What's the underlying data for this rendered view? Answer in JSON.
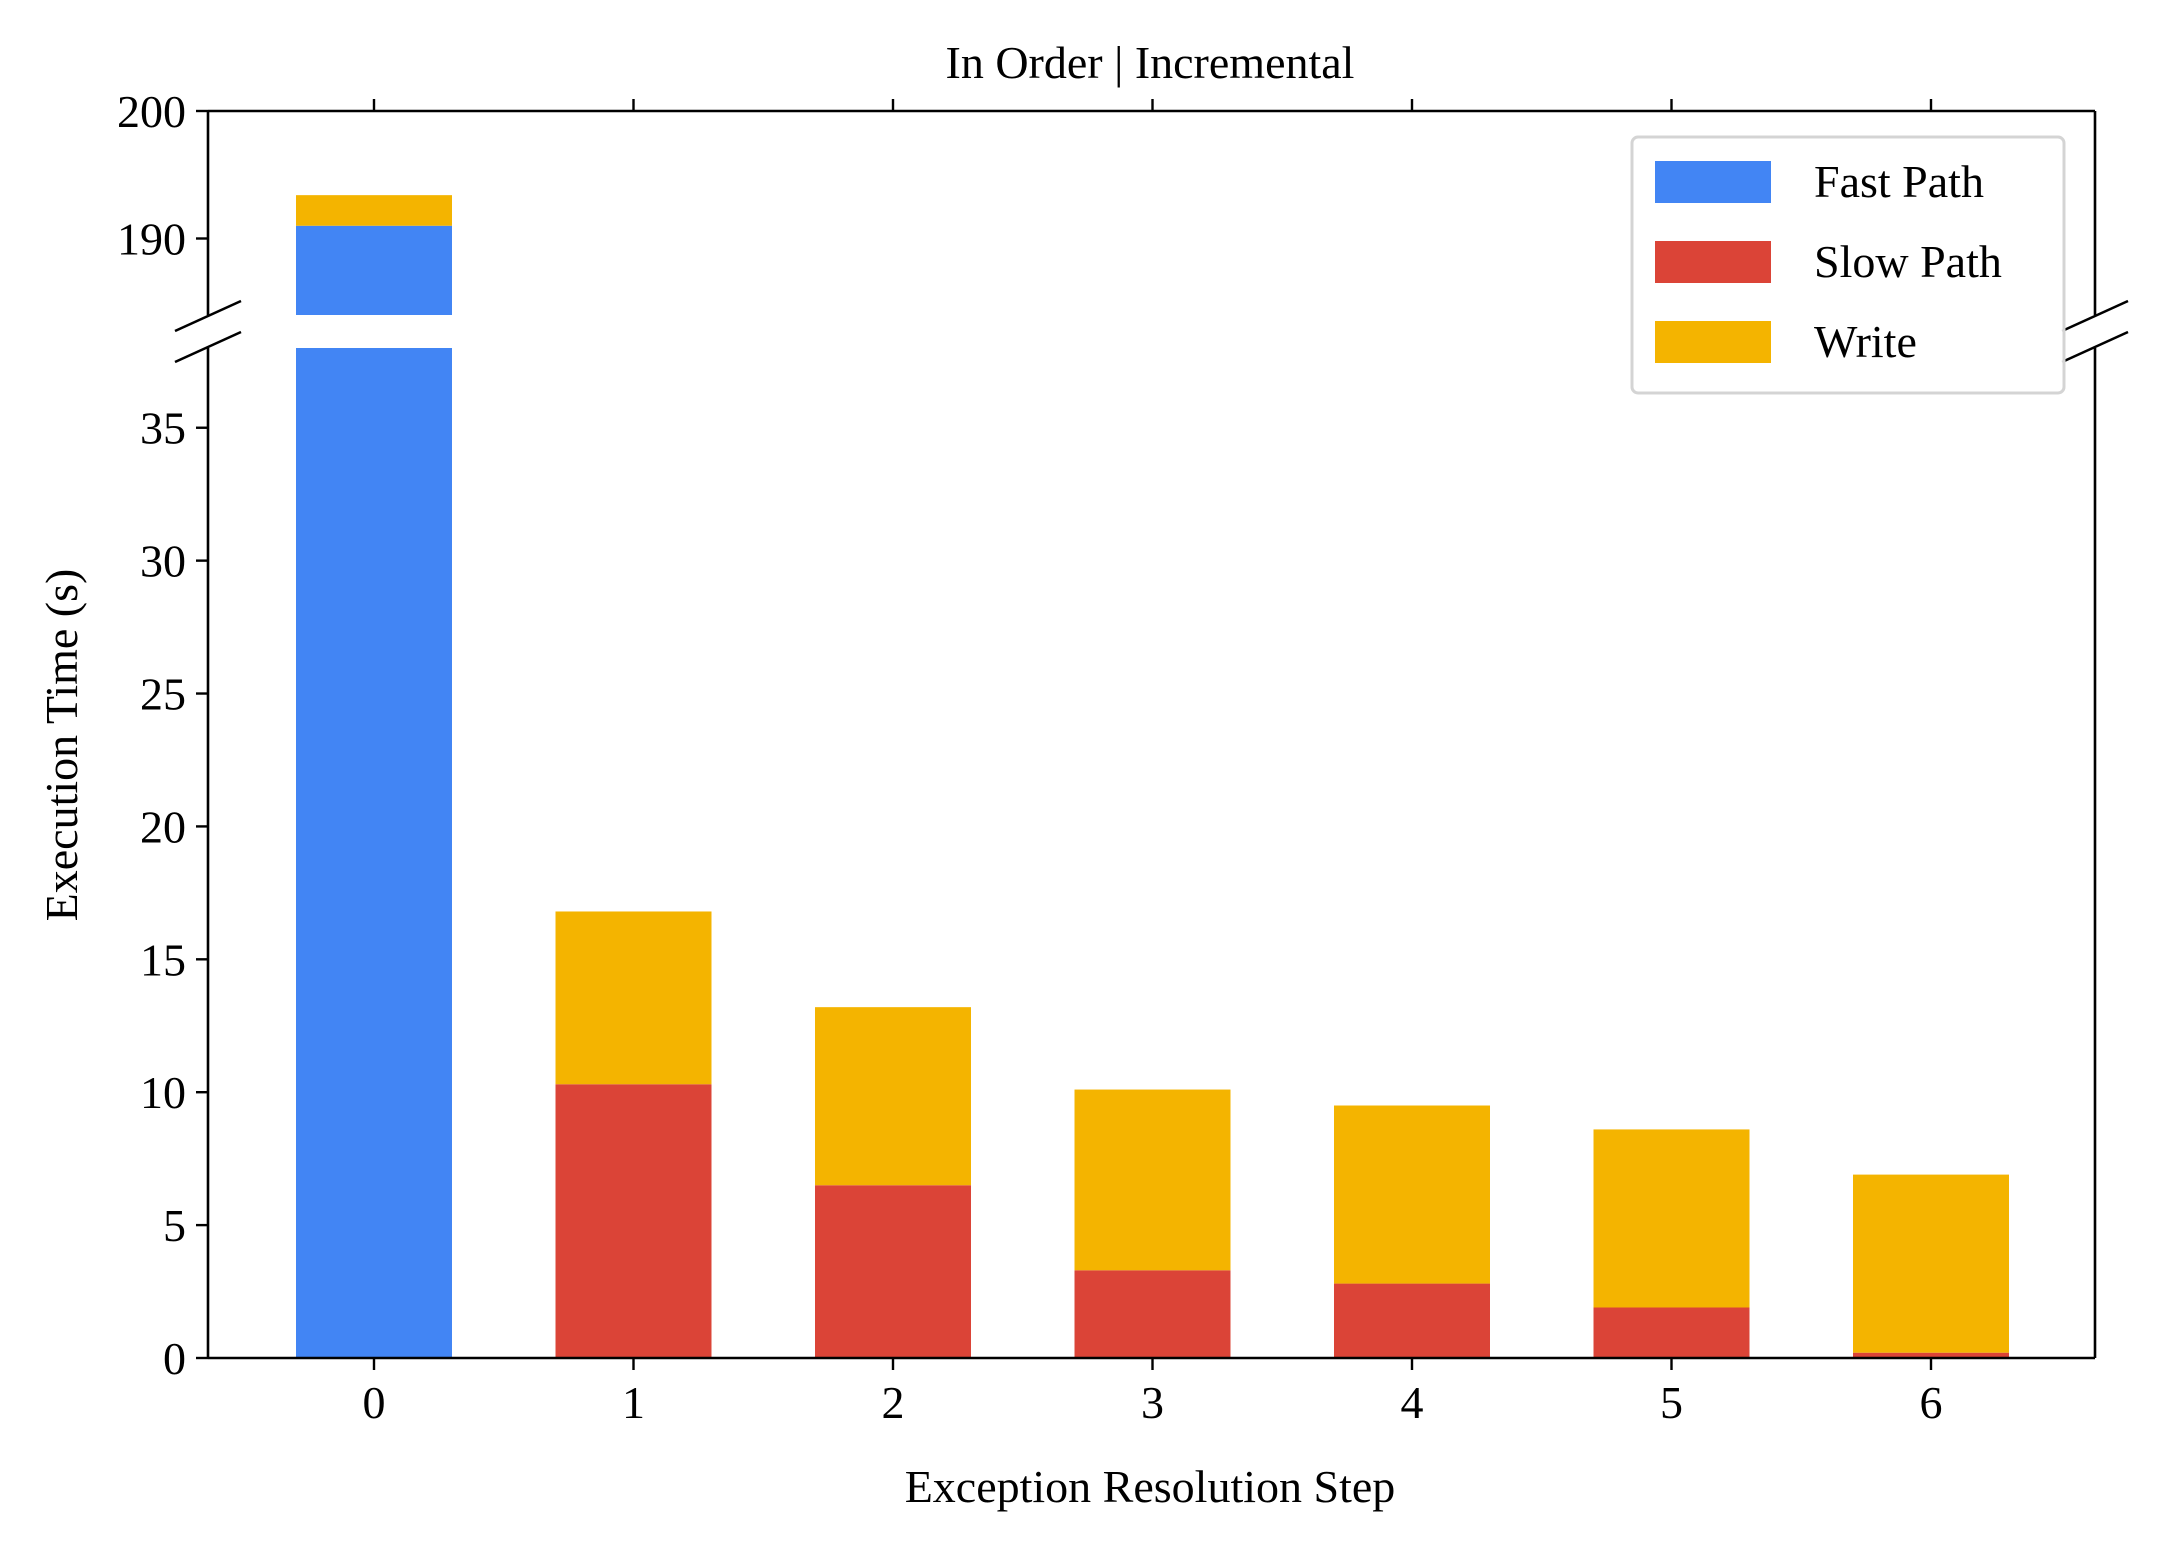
{
  "chart_data": {
    "type": "bar",
    "stacked": true,
    "broken_y_axis": true,
    "title": "In Order | Incremental",
    "xlabel": "Exception Resolution Step",
    "ylabel": "Execution Time (s)",
    "categories": [
      "0",
      "1",
      "2",
      "3",
      "4",
      "5",
      "6"
    ],
    "series": [
      {
        "name": "Fast Path",
        "color": "#4285F4",
        "values": [
          191.0,
          0,
          0,
          0,
          0,
          0,
          0
        ]
      },
      {
        "name": "Slow Path",
        "color": "#DB4437",
        "values": [
          0,
          10.3,
          6.5,
          3.3,
          2.8,
          1.9,
          0.2
        ]
      },
      {
        "name": "Write",
        "color": "#F4B400",
        "values": [
          2.4,
          6.5,
          6.7,
          6.8,
          6.7,
          6.7,
          6.7
        ]
      }
    ],
    "ylim_lower": [
      0,
      38
    ],
    "ylim_upper": [
      184,
      200
    ],
    "yticks_lower": [
      "0",
      "5",
      "10",
      "15",
      "20",
      "25",
      "30",
      "35"
    ],
    "yticks_upper": [
      "190",
      "200"
    ],
    "legend": {
      "position": "top-right",
      "entries": [
        "Fast Path",
        "Slow Path",
        "Write"
      ]
    },
    "grid": false
  }
}
